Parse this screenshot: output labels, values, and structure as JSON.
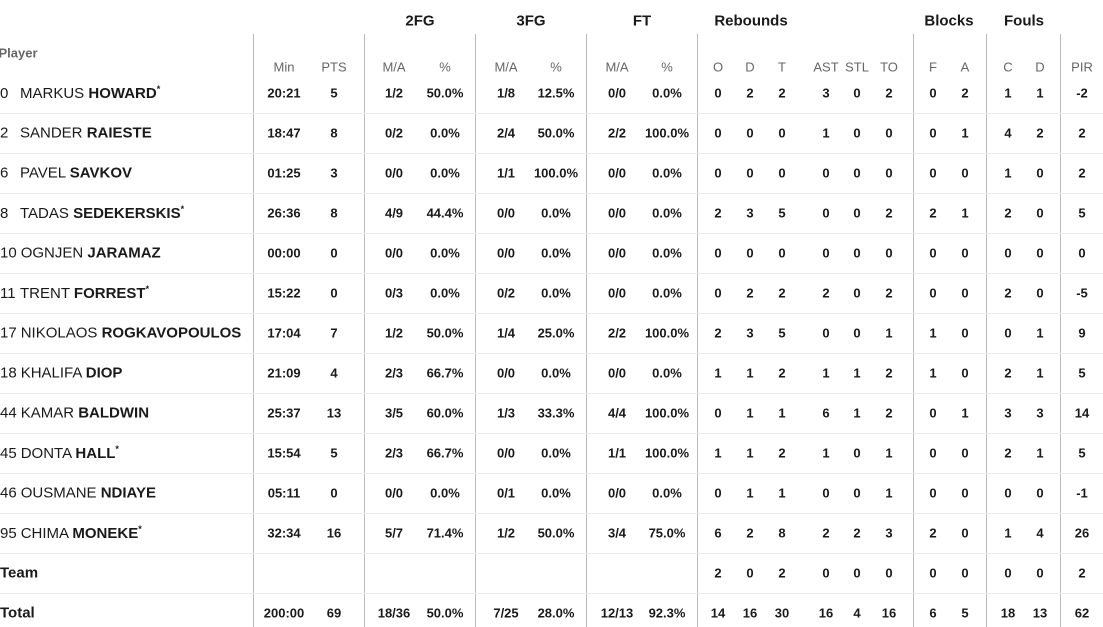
{
  "table": {
    "player_header": "Player",
    "groups": [
      "2FG",
      "3FG",
      "FT",
      "Rebounds",
      "Blocks",
      "Fouls"
    ],
    "columns": [
      "Min",
      "PTS",
      "M/A",
      "%",
      "M/A",
      "%",
      "M/A",
      "%",
      "O",
      "D",
      "T",
      "AST",
      "STL",
      "TO",
      "F",
      "A",
      "C",
      "D",
      "PIR"
    ],
    "rows": [
      {
        "no": "0",
        "first": "MARKUS",
        "last": "HOWARD",
        "star": "*",
        "stats": [
          "20:21",
          "5",
          "1/2",
          "50.0%",
          "1/8",
          "12.5%",
          "0/0",
          "0.0%",
          "0",
          "2",
          "2",
          "3",
          "0",
          "2",
          "0",
          "2",
          "1",
          "1",
          "-2"
        ]
      },
      {
        "no": "2",
        "first": "SANDER",
        "last": "RAIESTE",
        "stats": [
          "18:47",
          "8",
          "0/2",
          "0.0%",
          "2/4",
          "50.0%",
          "2/2",
          "100.0%",
          "0",
          "0",
          "0",
          "1",
          "0",
          "0",
          "0",
          "1",
          "4",
          "2",
          "2"
        ]
      },
      {
        "no": "6",
        "first": "PAVEL",
        "last": "SAVKOV",
        "stats": [
          "01:25",
          "3",
          "0/0",
          "0.0%",
          "1/1",
          "100.0%",
          "0/0",
          "0.0%",
          "0",
          "0",
          "0",
          "0",
          "0",
          "0",
          "0",
          "0",
          "1",
          "0",
          "2"
        ]
      },
      {
        "no": "8",
        "first": "TADAS",
        "last": "SEDEKERSKIS",
        "star": "*",
        "stats": [
          "26:36",
          "8",
          "4/9",
          "44.4%",
          "0/0",
          "0.0%",
          "0/0",
          "0.0%",
          "2",
          "3",
          "5",
          "0",
          "0",
          "2",
          "2",
          "1",
          "2",
          "0",
          "5"
        ]
      },
      {
        "no": "10",
        "first": "OGNJEN",
        "last": "JARAMAZ",
        "stats": [
          "00:00",
          "0",
          "0/0",
          "0.0%",
          "0/0",
          "0.0%",
          "0/0",
          "0.0%",
          "0",
          "0",
          "0",
          "0",
          "0",
          "0",
          "0",
          "0",
          "0",
          "0",
          "0"
        ]
      },
      {
        "no": "11",
        "first": "TRENT",
        "last": "FORREST",
        "star": "*",
        "stats": [
          "15:22",
          "0",
          "0/3",
          "0.0%",
          "0/2",
          "0.0%",
          "0/0",
          "0.0%",
          "0",
          "2",
          "2",
          "2",
          "0",
          "2",
          "0",
          "0",
          "2",
          "0",
          "-5"
        ]
      },
      {
        "no": "17",
        "first": "NIKOLAOS",
        "last": "ROGKAVOPOULOS",
        "stats": [
          "17:04",
          "7",
          "1/2",
          "50.0%",
          "1/4",
          "25.0%",
          "2/2",
          "100.0%",
          "2",
          "3",
          "5",
          "0",
          "0",
          "1",
          "1",
          "0",
          "0",
          "1",
          "9"
        ]
      },
      {
        "no": "18",
        "first": "KHALIFA",
        "last": "DIOP",
        "stats": [
          "21:09",
          "4",
          "2/3",
          "66.7%",
          "0/0",
          "0.0%",
          "0/0",
          "0.0%",
          "1",
          "1",
          "2",
          "1",
          "1",
          "2",
          "1",
          "0",
          "2",
          "1",
          "5"
        ]
      },
      {
        "no": "44",
        "first": "KAMAR",
        "last": "BALDWIN",
        "stats": [
          "25:37",
          "13",
          "3/5",
          "60.0%",
          "1/3",
          "33.3%",
          "4/4",
          "100.0%",
          "0",
          "1",
          "1",
          "6",
          "1",
          "2",
          "0",
          "1",
          "3",
          "3",
          "14"
        ]
      },
      {
        "no": "45",
        "first": "DONTA",
        "last": "HALL",
        "star": "*",
        "stats": [
          "15:54",
          "5",
          "2/3",
          "66.7%",
          "0/0",
          "0.0%",
          "1/1",
          "100.0%",
          "1",
          "1",
          "2",
          "1",
          "0",
          "1",
          "0",
          "0",
          "2",
          "1",
          "5"
        ]
      },
      {
        "no": "46",
        "first": "OUSMANE",
        "last": "NDIAYE",
        "stats": [
          "05:11",
          "0",
          "0/0",
          "0.0%",
          "0/1",
          "0.0%",
          "0/0",
          "0.0%",
          "0",
          "1",
          "1",
          "0",
          "0",
          "1",
          "0",
          "0",
          "0",
          "0",
          "-1"
        ]
      },
      {
        "no": "95",
        "first": "CHIMA",
        "last": "MONEKE",
        "star": "*",
        "stats": [
          "32:34",
          "16",
          "5/7",
          "71.4%",
          "1/2",
          "50.0%",
          "3/4",
          "75.0%",
          "6",
          "2",
          "8",
          "2",
          "2",
          "3",
          "2",
          "0",
          "1",
          "4",
          "26"
        ]
      },
      {
        "label": "Team",
        "stats": [
          null,
          null,
          null,
          null,
          null,
          null,
          null,
          null,
          "2",
          "0",
          "2",
          "0",
          "0",
          "0",
          "0",
          "0",
          "0",
          "0",
          "2"
        ]
      },
      {
        "label": "Total",
        "stats": [
          "200:00",
          "69",
          "18/36",
          "50.0%",
          "7/25",
          "28.0%",
          "12/13",
          "92.3%",
          "14",
          "16",
          "30",
          "16",
          "4",
          "16",
          "6",
          "5",
          "18",
          "13",
          "62"
        ]
      }
    ]
  }
}
